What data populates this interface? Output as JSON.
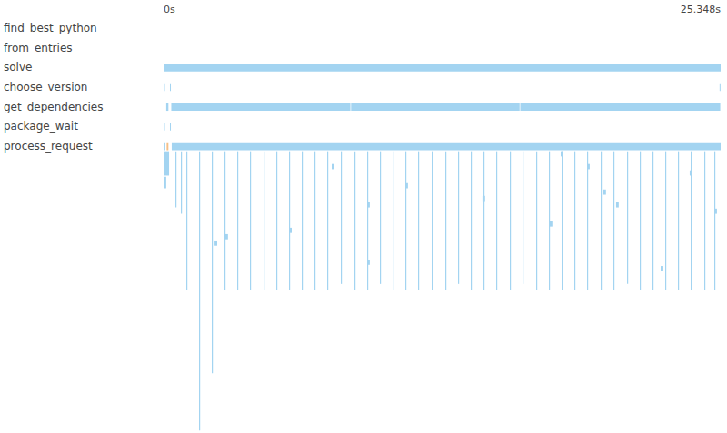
{
  "chart_data": {
    "type": "timeline",
    "color": "#a3d4f1",
    "xlim": [
      0,
      25.348
    ],
    "xticks": [
      {
        "value": 0,
        "label": "0s"
      },
      {
        "value": 25.348,
        "label": "25.348s"
      }
    ],
    "categories": [
      "find_best_python",
      "from_entries",
      "solve",
      "choose_version",
      "get_dependencies",
      "package_wait",
      "process_request",
      null,
      null,
      null,
      null,
      null,
      null,
      null,
      null,
      null,
      null,
      null,
      null,
      null,
      null,
      null,
      null,
      null,
      null,
      null,
      null,
      null,
      null,
      null,
      null,
      null,
      null,
      null,
      null,
      null,
      null,
      null,
      null,
      null,
      null,
      null,
      null,
      null,
      null,
      null,
      null,
      null,
      null,
      null,
      null
    ],
    "spans": [
      {
        "rows": [
          0,
          0
        ],
        "start": 0,
        "end": 0.03,
        "color": "#f5bf86"
      },
      {
        "rows": [
          2,
          2
        ],
        "start": 0.04,
        "end": 25.348
      },
      {
        "rows": [
          3,
          3
        ],
        "start": 0,
        "end": 0.06
      },
      {
        "rows": [
          3,
          3
        ],
        "start": 0.29,
        "end": 0.33
      },
      {
        "rows": [
          3,
          3
        ],
        "start": 25.3,
        "end": 25.33
      },
      {
        "rows": [
          4,
          4
        ],
        "start": 0.12,
        "end": 0.22
      },
      {
        "rows": [
          4,
          4
        ],
        "start": 0.35,
        "end": 8.5
      },
      {
        "rows": [
          4,
          4
        ],
        "start": 8.53,
        "end": 16.2
      },
      {
        "rows": [
          4,
          4
        ],
        "start": 16.23,
        "end": 25.33
      },
      {
        "rows": [
          5,
          5
        ],
        "start": 0,
        "end": 0.06
      },
      {
        "rows": [
          5,
          5
        ],
        "start": 0.29,
        "end": 0.33
      },
      {
        "rows": [
          6,
          6
        ],
        "start": 0,
        "end": 0.08
      },
      {
        "rows": [
          6,
          6
        ],
        "start": 0.14,
        "end": 0.22,
        "color": "#f5bf86"
      },
      {
        "rows": [
          6,
          6
        ],
        "start": 0.37,
        "end": 25.348
      },
      {
        "rows": [
          7,
          10
        ],
        "start": 0,
        "end": 0.25
      },
      {
        "rows": [
          11,
          12
        ],
        "start": 0.04,
        "end": 0.12
      },
      {
        "rows": [
          7,
          15
        ],
        "start": 0.538,
        "end": 0.588
      },
      {
        "rows": [
          7,
          16
        ],
        "start": 0.786,
        "end": 0.836
      },
      {
        "rows": [
          7,
          28
        ],
        "start": 1.034,
        "end": 1.084
      },
      {
        "rows": [
          7,
          50
        ],
        "start": 1.613,
        "end": 1.663
      },
      {
        "rows": [
          7,
          41
        ],
        "start": 2.192,
        "end": 2.242
      },
      {
        "rows": [
          7,
          28
        ],
        "start": 2.77,
        "end": 2.82
      },
      {
        "rows": [
          7,
          28
        ],
        "start": 3.349,
        "end": 3.399
      },
      {
        "rows": [
          7,
          28
        ],
        "start": 3.928,
        "end": 3.978
      },
      {
        "rows": [
          7,
          28
        ],
        "start": 4.549,
        "end": 4.599
      },
      {
        "rows": [
          7,
          28
        ],
        "start": 5.127,
        "end": 5.177
      },
      {
        "rows": [
          7,
          28
        ],
        "start": 5.706,
        "end": 5.756
      },
      {
        "rows": [
          7,
          28
        ],
        "start": 6.285,
        "end": 6.335
      },
      {
        "rows": [
          7,
          28
        ],
        "start": 6.864,
        "end": 6.914
      },
      {
        "rows": [
          7,
          28
        ],
        "start": 7.443,
        "end": 7.493
      },
      {
        "rows": [
          7,
          27
        ],
        "start": 8.063,
        "end": 8.113
      },
      {
        "rows": [
          7,
          28
        ],
        "start": 8.684,
        "end": 8.734
      },
      {
        "rows": [
          7,
          28
        ],
        "start": 9.262,
        "end": 9.312
      },
      {
        "rows": [
          7,
          27
        ],
        "start": 9.841,
        "end": 9.891
      },
      {
        "rows": [
          7,
          28
        ],
        "start": 10.42,
        "end": 10.47
      },
      {
        "rows": [
          7,
          28
        ],
        "start": 10.999,
        "end": 11.049
      },
      {
        "rows": [
          7,
          28
        ],
        "start": 11.578,
        "end": 11.628
      },
      {
        "rows": [
          7,
          28
        ],
        "start": 12.198,
        "end": 12.248
      },
      {
        "rows": [
          7,
          28
        ],
        "start": 12.819,
        "end": 12.869
      },
      {
        "rows": [
          7,
          27
        ],
        "start": 13.397,
        "end": 13.447
      },
      {
        "rows": [
          7,
          28
        ],
        "start": 13.976,
        "end": 14.026
      },
      {
        "rows": [
          7,
          28
        ],
        "start": 14.555,
        "end": 14.605
      },
      {
        "rows": [
          7,
          28
        ],
        "start": 15.134,
        "end": 15.184
      },
      {
        "rows": [
          7,
          28
        ],
        "start": 15.754,
        "end": 15.804
      },
      {
        "rows": [
          7,
          27
        ],
        "start": 16.333,
        "end": 16.383
      },
      {
        "rows": [
          7,
          28
        ],
        "start": 16.954,
        "end": 17.004
      },
      {
        "rows": [
          7,
          28
        ],
        "start": 17.532,
        "end": 17.582
      },
      {
        "rows": [
          7,
          28
        ],
        "start": 18.111,
        "end": 18.161
      },
      {
        "rows": [
          7,
          28
        ],
        "start": 18.69,
        "end": 18.74
      },
      {
        "rows": [
          7,
          28
        ],
        "start": 19.269,
        "end": 19.319
      },
      {
        "rows": [
          7,
          28
        ],
        "start": 19.889,
        "end": 19.939
      },
      {
        "rows": [
          7,
          28
        ],
        "start": 20.468,
        "end": 20.518
      },
      {
        "rows": [
          7,
          27
        ],
        "start": 21.089,
        "end": 21.139
      },
      {
        "rows": [
          7,
          28
        ],
        "start": 21.667,
        "end": 21.717
      },
      {
        "rows": [
          7,
          28
        ],
        "start": 22.246,
        "end": 22.296
      },
      {
        "rows": [
          7,
          28
        ],
        "start": 22.825,
        "end": 22.875
      },
      {
        "rows": [
          7,
          28
        ],
        "start": 23.404,
        "end": 23.454
      },
      {
        "rows": [
          7,
          28
        ],
        "start": 23.983,
        "end": 24.033
      },
      {
        "rows": [
          7,
          28
        ],
        "start": 24.603,
        "end": 24.653
      },
      {
        "rows": [
          7,
          28
        ],
        "start": 25.058,
        "end": 25.108
      },
      {
        "rows": [
          9,
          9
        ],
        "start": 7.65,
        "end": 7.77
      },
      {
        "rows": [
          15,
          15
        ],
        "start": 9.262,
        "end": 9.382
      },
      {
        "rows": [
          24,
          24
        ],
        "start": 9.262,
        "end": 9.382
      },
      {
        "rows": [
          12,
          12
        ],
        "start": 10.999,
        "end": 11.119
      },
      {
        "rows": [
          14,
          14
        ],
        "start": 14.51,
        "end": 14.63
      },
      {
        "rows": [
          18,
          18
        ],
        "start": 17.57,
        "end": 17.69
      },
      {
        "rows": [
          7,
          7
        ],
        "start": 18.07,
        "end": 18.19
      },
      {
        "rows": [
          9,
          9
        ],
        "start": 19.27,
        "end": 19.39
      },
      {
        "rows": [
          13,
          13
        ],
        "start": 20.01,
        "end": 20.13
      },
      {
        "rows": [
          15,
          15
        ],
        "start": 20.59,
        "end": 20.71
      },
      {
        "rows": [
          25,
          25
        ],
        "start": 22.62,
        "end": 22.74
      },
      {
        "rows": [
          10,
          10
        ],
        "start": 23.94,
        "end": 24.06
      },
      {
        "rows": [
          16,
          16
        ],
        "start": 25.06,
        "end": 25.18
      },
      {
        "rows": [
          20,
          20
        ],
        "start": 2.81,
        "end": 2.93
      },
      {
        "rows": [
          19,
          19
        ],
        "start": 5.71,
        "end": 5.83
      },
      {
        "rows": [
          21,
          21
        ],
        "start": 2.32,
        "end": 2.44
      }
    ]
  }
}
